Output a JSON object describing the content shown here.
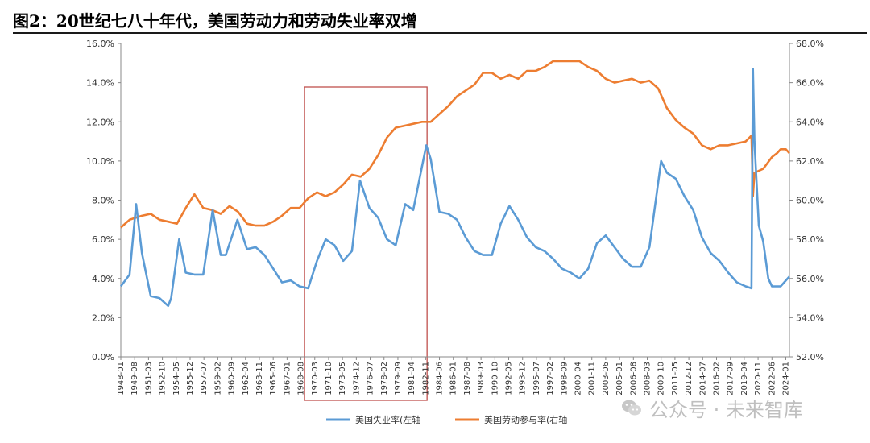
{
  "title": "图2：20世纪七八十年代，美国劳动力和劳动失业率双增",
  "watermark": {
    "text": "公众号 · 未来智库",
    "logo_icon": "wechat-logo-icon"
  },
  "colors": {
    "unemployment": "#5b9bd5",
    "participation": "#ed7d31",
    "highlight_box": "#c0504d"
  },
  "chart_data": {
    "type": "line",
    "x_categories": [
      "1948-01",
      "1951-03",
      "1954-05",
      "1957-07",
      "1960-09",
      "1963-11",
      "1967-01",
      "1970-03",
      "1973-05",
      "1976-07",
      "1979-09",
      "1982-11",
      "1986-01",
      "1989-03",
      "1992-05",
      "1995-07",
      "1998-09",
      "2001-11",
      "2005-01",
      "2008-03",
      "2011-05",
      "2014-07",
      "2017-09",
      "2020-11",
      "2024-01"
    ],
    "x_tick_labels": [
      "1948-01",
      "1949-08",
      "1951-03",
      "1952-10",
      "1954-05",
      "1955-12",
      "1957-07",
      "1959-02",
      "1960-09",
      "1962-04",
      "1963-11",
      "1965-06",
      "1967-01",
      "1968-08",
      "1970-03",
      "1971-10",
      "1973-05",
      "1974-12",
      "1976-07",
      "1978-02",
      "1979-09",
      "1981-04",
      "1982-11",
      "1984-06",
      "1986-01",
      "1987-08",
      "1989-03",
      "1990-10",
      "1992-05",
      "1993-12",
      "1995-07",
      "1997-02",
      "1998-09",
      "2000-04",
      "2001-11",
      "2003-06",
      "2005-01",
      "2006-08",
      "2008-03",
      "2009-10",
      "2011-05",
      "2012-12",
      "2014-07",
      "2016-02",
      "2017-09",
      "2019-04",
      "2020-11",
      "2022-06",
      "2024-01"
    ],
    "x_range": [
      "1948-01",
      "2024-06"
    ],
    "left_axis": {
      "min": 0,
      "max": 16,
      "step": 2,
      "tick_labels": [
        "0.0%",
        "2.0%",
        "4.0%",
        "6.0%",
        "8.0%",
        "10.0%",
        "12.0%",
        "14.0%",
        "16.0%"
      ]
    },
    "right_axis": {
      "min": 52,
      "max": 68,
      "step": 2,
      "tick_labels": [
        "52.0%",
        "54.0%",
        "56.0%",
        "58.0%",
        "60.0%",
        "62.0%",
        "64.0%",
        "66.0%",
        "68.0%"
      ]
    },
    "highlight": {
      "from": "1969-01",
      "to": "1983-01"
    },
    "grid": false,
    "legend_position": "bottom",
    "series": [
      {
        "name": "美国失业率(左轴",
        "axis": "left",
        "points": [
          [
            "1948-01",
            3.6
          ],
          [
            "1949-01",
            4.2
          ],
          [
            "1949-10",
            7.8
          ],
          [
            "1950-06",
            5.3
          ],
          [
            "1951-06",
            3.1
          ],
          [
            "1952-06",
            3.0
          ],
          [
            "1953-06",
            2.6
          ],
          [
            "1953-10",
            3.0
          ],
          [
            "1954-09",
            6.0
          ],
          [
            "1955-06",
            4.3
          ],
          [
            "1956-06",
            4.2
          ],
          [
            "1957-06",
            4.2
          ],
          [
            "1958-07",
            7.5
          ],
          [
            "1959-06",
            5.2
          ],
          [
            "1960-01",
            5.2
          ],
          [
            "1961-05",
            7.0
          ],
          [
            "1962-06",
            5.5
          ],
          [
            "1963-06",
            5.6
          ],
          [
            "1964-06",
            5.2
          ],
          [
            "1965-06",
            4.5
          ],
          [
            "1966-06",
            3.8
          ],
          [
            "1967-06",
            3.9
          ],
          [
            "1968-06",
            3.6
          ],
          [
            "1969-06",
            3.5
          ],
          [
            "1970-06",
            4.9
          ],
          [
            "1971-06",
            6.0
          ],
          [
            "1972-06",
            5.7
          ],
          [
            "1973-06",
            4.9
          ],
          [
            "1974-06",
            5.4
          ],
          [
            "1975-05",
            9.0
          ],
          [
            "1976-06",
            7.6
          ],
          [
            "1977-06",
            7.1
          ],
          [
            "1978-06",
            6.0
          ],
          [
            "1979-06",
            5.7
          ],
          [
            "1980-07",
            7.8
          ],
          [
            "1981-06",
            7.5
          ],
          [
            "1982-12",
            10.8
          ],
          [
            "1983-06",
            10.1
          ],
          [
            "1984-06",
            7.4
          ],
          [
            "1985-06",
            7.3
          ],
          [
            "1986-06",
            7.0
          ],
          [
            "1987-06",
            6.1
          ],
          [
            "1988-06",
            5.4
          ],
          [
            "1989-06",
            5.2
          ],
          [
            "1990-06",
            5.2
          ],
          [
            "1991-06",
            6.8
          ],
          [
            "1992-06",
            7.7
          ],
          [
            "1993-06",
            7.0
          ],
          [
            "1994-06",
            6.1
          ],
          [
            "1995-06",
            5.6
          ],
          [
            "1996-06",
            5.4
          ],
          [
            "1997-06",
            5.0
          ],
          [
            "1998-06",
            4.5
          ],
          [
            "1999-06",
            4.3
          ],
          [
            "2000-06",
            4.0
          ],
          [
            "2001-06",
            4.5
          ],
          [
            "2002-06",
            5.8
          ],
          [
            "2003-06",
            6.2
          ],
          [
            "2004-06",
            5.6
          ],
          [
            "2005-06",
            5.0
          ],
          [
            "2006-06",
            4.6
          ],
          [
            "2007-06",
            4.6
          ],
          [
            "2008-06",
            5.6
          ],
          [
            "2009-10",
            10.0
          ],
          [
            "2010-06",
            9.4
          ],
          [
            "2011-06",
            9.1
          ],
          [
            "2012-06",
            8.2
          ],
          [
            "2013-06",
            7.5
          ],
          [
            "2014-06",
            6.1
          ],
          [
            "2015-06",
            5.3
          ],
          [
            "2016-06",
            4.9
          ],
          [
            "2017-06",
            4.3
          ],
          [
            "2018-06",
            3.8
          ],
          [
            "2019-06",
            3.6
          ],
          [
            "2020-02",
            3.5
          ],
          [
            "2020-04",
            14.7
          ],
          [
            "2020-06",
            11.0
          ],
          [
            "2020-12",
            6.7
          ],
          [
            "2021-06",
            5.9
          ],
          [
            "2022-01",
            4.0
          ],
          [
            "2022-06",
            3.6
          ],
          [
            "2023-06",
            3.6
          ],
          [
            "2024-06",
            4.1
          ]
        ]
      },
      {
        "name": "美国劳动参与率(右轴",
        "axis": "right",
        "points": [
          [
            "1948-01",
            58.6
          ],
          [
            "1949-01",
            59.0
          ],
          [
            "1950-06",
            59.2
          ],
          [
            "1951-06",
            59.3
          ],
          [
            "1952-06",
            59.0
          ],
          [
            "1953-06",
            58.9
          ],
          [
            "1954-06",
            58.8
          ],
          [
            "1955-06",
            59.6
          ],
          [
            "1956-06",
            60.3
          ],
          [
            "1957-06",
            59.6
          ],
          [
            "1958-06",
            59.5
          ],
          [
            "1959-06",
            59.3
          ],
          [
            "1960-06",
            59.7
          ],
          [
            "1961-06",
            59.4
          ],
          [
            "1962-06",
            58.8
          ],
          [
            "1963-06",
            58.7
          ],
          [
            "1964-06",
            58.7
          ],
          [
            "1965-06",
            58.9
          ],
          [
            "1966-06",
            59.2
          ],
          [
            "1967-06",
            59.6
          ],
          [
            "1968-06",
            59.6
          ],
          [
            "1969-06",
            60.1
          ],
          [
            "1970-06",
            60.4
          ],
          [
            "1971-06",
            60.2
          ],
          [
            "1972-06",
            60.4
          ],
          [
            "1973-06",
            60.8
          ],
          [
            "1974-06",
            61.3
          ],
          [
            "1975-06",
            61.2
          ],
          [
            "1976-06",
            61.6
          ],
          [
            "1977-06",
            62.3
          ],
          [
            "1978-06",
            63.2
          ],
          [
            "1979-06",
            63.7
          ],
          [
            "1980-06",
            63.8
          ],
          [
            "1981-06",
            63.9
          ],
          [
            "1982-06",
            64.0
          ],
          [
            "1983-06",
            64.0
          ],
          [
            "1984-06",
            64.4
          ],
          [
            "1985-06",
            64.8
          ],
          [
            "1986-06",
            65.3
          ],
          [
            "1987-06",
            65.6
          ],
          [
            "1988-06",
            65.9
          ],
          [
            "1989-06",
            66.5
          ],
          [
            "1990-06",
            66.5
          ],
          [
            "1991-06",
            66.2
          ],
          [
            "1992-06",
            66.4
          ],
          [
            "1993-06",
            66.2
          ],
          [
            "1994-06",
            66.6
          ],
          [
            "1995-06",
            66.6
          ],
          [
            "1996-06",
            66.8
          ],
          [
            "1997-06",
            67.1
          ],
          [
            "1998-06",
            67.1
          ],
          [
            "1999-06",
            67.1
          ],
          [
            "2000-06",
            67.1
          ],
          [
            "2001-06",
            66.8
          ],
          [
            "2002-06",
            66.6
          ],
          [
            "2003-06",
            66.2
          ],
          [
            "2004-06",
            66.0
          ],
          [
            "2005-06",
            66.1
          ],
          [
            "2006-06",
            66.2
          ],
          [
            "2007-06",
            66.0
          ],
          [
            "2008-06",
            66.1
          ],
          [
            "2009-06",
            65.7
          ],
          [
            "2010-06",
            64.7
          ],
          [
            "2011-06",
            64.1
          ],
          [
            "2012-06",
            63.7
          ],
          [
            "2013-06",
            63.4
          ],
          [
            "2014-06",
            62.8
          ],
          [
            "2015-06",
            62.6
          ],
          [
            "2016-06",
            62.8
          ],
          [
            "2017-06",
            62.8
          ],
          [
            "2018-06",
            62.9
          ],
          [
            "2019-06",
            63.0
          ],
          [
            "2020-02",
            63.3
          ],
          [
            "2020-04",
            60.2
          ],
          [
            "2020-06",
            61.4
          ],
          [
            "2020-12",
            61.5
          ],
          [
            "2021-06",
            61.6
          ],
          [
            "2022-06",
            62.2
          ],
          [
            "2023-01",
            62.4
          ],
          [
            "2023-06",
            62.6
          ],
          [
            "2024-01",
            62.6
          ],
          [
            "2024-06",
            62.4
          ]
        ]
      }
    ]
  }
}
